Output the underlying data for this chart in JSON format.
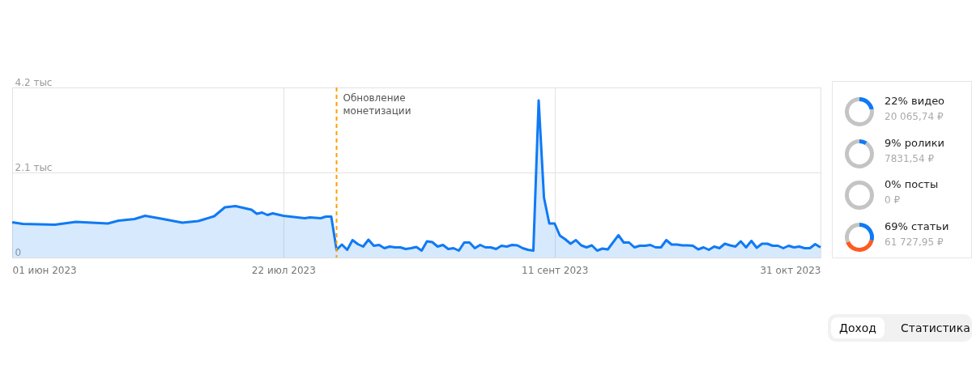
{
  "chart_data": [
    {
      "type": "area",
      "xlim": [
        "2023-06-01",
        "2023-10-31"
      ],
      "xticks": [
        {
          "value": "2023-06-01",
          "label": "01 июн 2023"
        },
        {
          "value": "2023-07-22",
          "label": "22 июл 2023"
        },
        {
          "value": "2023-09-11",
          "label": "11 сент 2023"
        },
        {
          "value": "2023-10-31",
          "label": "31 окт 2023"
        }
      ],
      "ylim": [
        0,
        4.2
      ],
      "yticks": [
        0,
        {
          "value": 2.1,
          "label": "2.1 тыс"
        },
        {
          "value": 4.2,
          "label": "4.2 тыс"
        }
      ],
      "grid": true,
      "ref_lines": [
        {
          "axis": "x",
          "value": "2023-08-01",
          "label": "Обновление монетизации",
          "color": "#ffa000",
          "line_style": "dashed"
        }
      ],
      "annotations": [
        "Доход",
        "Статистика"
      ],
      "series": [
        {
          "color": "#0f7af5",
          "x": [
            "2023-06-01",
            "2023-06-03",
            "2023-06-06",
            "2023-06-09",
            "2023-06-13",
            "2023-06-16",
            "2023-06-19",
            "2023-06-21",
            "2023-06-24",
            "2023-06-26",
            "2023-06-29",
            "2023-07-03",
            "2023-07-06",
            "2023-07-09",
            "2023-07-11",
            "2023-07-13",
            "2023-07-16",
            "2023-07-17",
            "2023-07-18",
            "2023-07-19",
            "2023-07-20",
            "2023-07-22",
            "2023-07-26",
            "2023-07-27",
            "2023-07-29",
            "2023-07-30",
            "2023-07-31",
            "2023-08-01",
            "2023-08-02",
            "2023-08-03",
            "2023-08-04",
            "2023-08-05",
            "2023-08-06",
            "2023-08-07",
            "2023-08-08",
            "2023-08-09",
            "2023-08-10",
            "2023-08-11",
            "2023-08-12",
            "2023-08-13",
            "2023-08-14",
            "2023-08-15",
            "2023-08-16",
            "2023-08-17",
            "2023-08-18",
            "2023-08-19",
            "2023-08-20",
            "2023-08-21",
            "2023-08-22",
            "2023-08-23",
            "2023-08-24",
            "2023-08-25",
            "2023-08-26",
            "2023-08-27",
            "2023-08-28",
            "2023-08-29",
            "2023-08-30",
            "2023-08-31",
            "2023-09-01",
            "2023-09-02",
            "2023-09-03",
            "2023-09-04",
            "2023-09-05",
            "2023-09-06",
            "2023-09-07",
            "2023-09-08",
            "2023-09-09",
            "2023-09-10",
            "2023-09-11",
            "2023-09-12",
            "2023-09-13",
            "2023-09-14",
            "2023-09-15",
            "2023-09-16",
            "2023-09-17",
            "2023-09-18",
            "2023-09-19",
            "2023-09-20",
            "2023-09-21",
            "2023-09-23",
            "2023-09-24",
            "2023-09-25",
            "2023-09-26",
            "2023-09-27",
            "2023-09-28",
            "2023-09-29",
            "2023-09-30",
            "2023-10-01",
            "2023-10-02",
            "2023-10-03",
            "2023-10-04",
            "2023-10-05",
            "2023-10-06",
            "2023-10-07",
            "2023-10-08",
            "2023-10-09",
            "2023-10-10",
            "2023-10-11",
            "2023-10-12",
            "2023-10-13",
            "2023-10-14",
            "2023-10-15",
            "2023-10-16",
            "2023-10-17",
            "2023-10-18",
            "2023-10-19",
            "2023-10-20",
            "2023-10-21",
            "2023-10-22",
            "2023-10-23",
            "2023-10-24",
            "2023-10-25",
            "2023-10-26",
            "2023-10-27",
            "2023-10-28",
            "2023-10-29",
            "2023-10-30",
            "2023-10-31"
          ],
          "values": [
            0.87,
            0.83,
            0.82,
            0.81,
            0.88,
            0.86,
            0.84,
            0.91,
            0.95,
            1.03,
            0.96,
            0.86,
            0.9,
            1.02,
            1.24,
            1.27,
            1.18,
            1.08,
            1.11,
            1.05,
            1.09,
            1.03,
            0.97,
            0.99,
            0.97,
            1.01,
            1.01,
            0.19,
            0.32,
            0.19,
            0.43,
            0.33,
            0.27,
            0.44,
            0.29,
            0.31,
            0.23,
            0.27,
            0.25,
            0.25,
            0.21,
            0.23,
            0.26,
            0.17,
            0.4,
            0.38,
            0.27,
            0.31,
            0.21,
            0.23,
            0.17,
            0.37,
            0.37,
            0.23,
            0.31,
            0.25,
            0.25,
            0.21,
            0.29,
            0.27,
            0.31,
            0.3,
            0.23,
            0.19,
            0.17,
            3.88,
            1.48,
            0.84,
            0.84,
            0.54,
            0.45,
            0.34,
            0.43,
            0.3,
            0.25,
            0.3,
            0.17,
            0.22,
            0.2,
            0.55,
            0.37,
            0.37,
            0.25,
            0.29,
            0.29,
            0.31,
            0.25,
            0.25,
            0.43,
            0.32,
            0.32,
            0.3,
            0.3,
            0.29,
            0.2,
            0.25,
            0.19,
            0.27,
            0.23,
            0.34,
            0.3,
            0.27,
            0.4,
            0.25,
            0.41,
            0.24,
            0.34,
            0.34,
            0.29,
            0.29,
            0.23,
            0.29,
            0.25,
            0.27,
            0.23,
            0.23,
            0.33,
            0.25
          ]
        }
      ]
    },
    {
      "type": "donut",
      "title": "22% видео",
      "subtitle": "20 065,74 ₽",
      "categories": [
        null,
        null
      ],
      "values": [
        22,
        78
      ],
      "colors": [
        "#0f7af5",
        "#c4c4c4"
      ]
    },
    {
      "type": "donut",
      "title": "9% ролики",
      "subtitle": "7831,54 ₽",
      "categories": [
        null,
        null
      ],
      "values": [
        9,
        91
      ],
      "colors": [
        "#0f7af5",
        "#c4c4c4"
      ]
    },
    {
      "type": "donut",
      "title": "0% посты",
      "subtitle": "0 ₽",
      "categories": [
        null,
        null
      ],
      "values": [
        0,
        100
      ],
      "colors": [
        "#0f7af5",
        "#c4c4c4"
      ]
    },
    {
      "type": "donut",
      "title": "69% статьи",
      "subtitle": "61 727,95 ₽",
      "categories": [
        null,
        null,
        null
      ],
      "values": [
        29,
        40,
        31
      ],
      "colors": [
        "#0f7af5",
        "#ff5a1f",
        "#c4c4c4"
      ]
    }
  ]
}
